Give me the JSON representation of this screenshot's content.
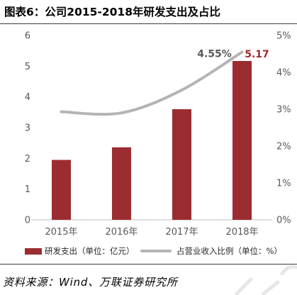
{
  "chart_data": {
    "type": "bar",
    "title": "图表6：公司2015-2018年研发支出及占比",
    "categories": [
      "2015年",
      "2016年",
      "2017年",
      "2018年"
    ],
    "series": [
      {
        "name": "研发支出（单位：亿元）",
        "type": "bar",
        "axis": "left",
        "color": "#9B2D30",
        "values": [
          1.95,
          2.36,
          3.6,
          5.17
        ]
      },
      {
        "name": "占营业收入比例（单位：%）",
        "type": "line",
        "axis": "right",
        "color": "#B4B4B4",
        "values": [
          2.93,
          2.9,
          3.52,
          4.55
        ]
      }
    ],
    "y_left": {
      "ylim": [
        0,
        6
      ],
      "ticks": [
        "0",
        "1",
        "2",
        "3",
        "4",
        "5",
        "6"
      ]
    },
    "y_right": {
      "ylim": [
        0,
        5
      ],
      "ticks": [
        "0%",
        "1%",
        "2%",
        "3%",
        "4%",
        "5%"
      ]
    },
    "data_labels": [
      {
        "series": 0,
        "index": 3,
        "text": "5.17",
        "color": "#9B2D30"
      },
      {
        "series": 1,
        "index": 3,
        "text": "4.55%",
        "color": "#595959"
      }
    ],
    "grid": false,
    "legend": "bottom"
  },
  "footer": {
    "source": "资料来源：Wind、万联证券研究所"
  }
}
